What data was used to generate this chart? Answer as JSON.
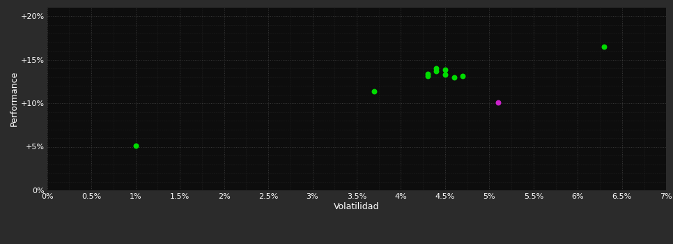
{
  "fig_bg_color": "#2b2b2b",
  "plot_bg_color": "#0d0d0d",
  "grid_color": "#3a3a3a",
  "text_color": "#ffffff",
  "xlabel": "Volatilidad",
  "ylabel": "Performance",
  "xlim": [
    0.0,
    0.07
  ],
  "ylim": [
    0.0,
    0.21
  ],
  "xticks": [
    0.0,
    0.005,
    0.01,
    0.015,
    0.02,
    0.025,
    0.03,
    0.035,
    0.04,
    0.045,
    0.05,
    0.055,
    0.06,
    0.065,
    0.07
  ],
  "yticks": [
    0.0,
    0.05,
    0.1,
    0.15,
    0.2
  ],
  "minor_xticks": [
    0.0025,
    0.0075,
    0.0125,
    0.0175,
    0.0225,
    0.0275,
    0.0325,
    0.0375,
    0.0425,
    0.0475,
    0.0525,
    0.0575,
    0.0625,
    0.0675
  ],
  "minor_yticks": [
    0.01,
    0.02,
    0.03,
    0.04,
    0.06,
    0.07,
    0.08,
    0.09,
    0.11,
    0.12,
    0.13,
    0.14,
    0.16,
    0.17,
    0.18,
    0.19
  ],
  "green_points": [
    [
      0.01,
      0.051
    ],
    [
      0.037,
      0.114
    ],
    [
      0.043,
      0.131
    ],
    [
      0.043,
      0.134
    ],
    [
      0.044,
      0.137
    ],
    [
      0.044,
      0.14
    ],
    [
      0.045,
      0.138
    ],
    [
      0.045,
      0.133
    ],
    [
      0.046,
      0.13
    ],
    [
      0.047,
      0.131
    ],
    [
      0.063,
      0.165
    ]
  ],
  "magenta_points": [
    [
      0.051,
      0.101
    ]
  ],
  "green_color": "#00dd00",
  "magenta_color": "#cc22cc",
  "marker_size": 22
}
